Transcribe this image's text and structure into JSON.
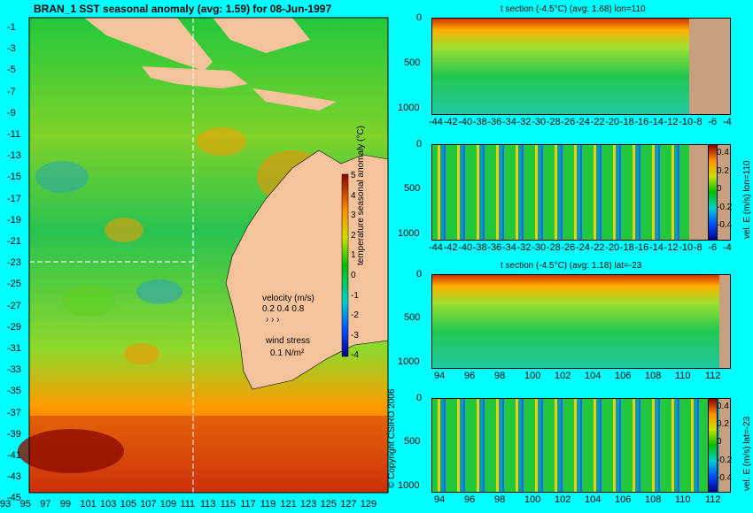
{
  "main_title": "BRAN_1  SST seasonal anomaly (avg: 1.59) for 08-Jun-1997",
  "map": {
    "lat_ticks": [
      "-1",
      "-3",
      "-5",
      "-7",
      "-9",
      "-11",
      "-13",
      "-15",
      "-17",
      "-19",
      "-21",
      "-23",
      "-25",
      "-27",
      "-29",
      "-31",
      "-33",
      "-35",
      "-37",
      "-39",
      "-41",
      "-43",
      "-45"
    ],
    "lon_ticks": [
      "93",
      "95",
      "97",
      "99",
      "101",
      "103",
      "105",
      "107",
      "109",
      "111",
      "113",
      "115",
      "117",
      "119",
      "121",
      "123",
      "125",
      "127",
      "129"
    ],
    "colorbar_ticks": [
      "5",
      "4",
      "3",
      "2",
      "1",
      "0",
      "-1",
      "-2",
      "-3",
      "-4"
    ],
    "colorbar_label": "temperature seasonal anomaly (°C)",
    "velocity_label": "velocity (m/s)",
    "velocity_scale": "0.2 0.4 0.8",
    "wind_label": "wind stress",
    "wind_scale": "0.1 N/m²",
    "copyright": "© Copyright CSIRO 2006",
    "colors": {
      "land": "#f5c39b",
      "ocean_mid": "#22c83c",
      "warm": "#ff8c00",
      "hot": "#b41400",
      "cool": "#30a8a0"
    }
  },
  "panels": [
    {
      "title": "t section (-4.5°C) (avg: 1.68) lon=110",
      "y_ticks": [
        "0",
        "500",
        "1000"
      ],
      "x_ticks": [
        "-44",
        "-42",
        "-40",
        "-38",
        "-36",
        "-34",
        "-32",
        "-30",
        "-28",
        "-26",
        "-24",
        "-22",
        "-20",
        "-18",
        "-16",
        "-14",
        "-12",
        "-10",
        "-8",
        "-6",
        "-4"
      ]
    },
    {
      "title": "",
      "y_ticks": [
        "0",
        "500",
        "1000"
      ],
      "x_ticks": [
        "-44",
        "-42",
        "-40",
        "-38",
        "-36",
        "-34",
        "-32",
        "-30",
        "-28",
        "-26",
        "-24",
        "-22",
        "-20",
        "-18",
        "-16",
        "-14",
        "-12",
        "-10",
        "-8",
        "-6",
        "-4"
      ],
      "cbar_ticks": [
        "0.4",
        "0.2",
        "0",
        "-0.2",
        "-0.4"
      ],
      "cbar_label": "vel. E (m/s) lon=110"
    },
    {
      "title": "t section (-4.5°C) (avg: 1.18) lat=-23",
      "y_ticks": [
        "0",
        "500",
        "1000"
      ],
      "x_ticks": [
        "94",
        "96",
        "98",
        "100",
        "102",
        "104",
        "106",
        "108",
        "110",
        "112"
      ]
    },
    {
      "title": "",
      "y_ticks": [
        "0",
        "500",
        "1000"
      ],
      "x_ticks": [
        "94",
        "96",
        "98",
        "100",
        "102",
        "104",
        "106",
        "108",
        "110",
        "112"
      ],
      "cbar_ticks": [
        "0.4",
        "0.2",
        "0",
        "-0.2",
        "-0.4"
      ],
      "cbar_label": "vel. E (m/s) lat=-23"
    }
  ]
}
